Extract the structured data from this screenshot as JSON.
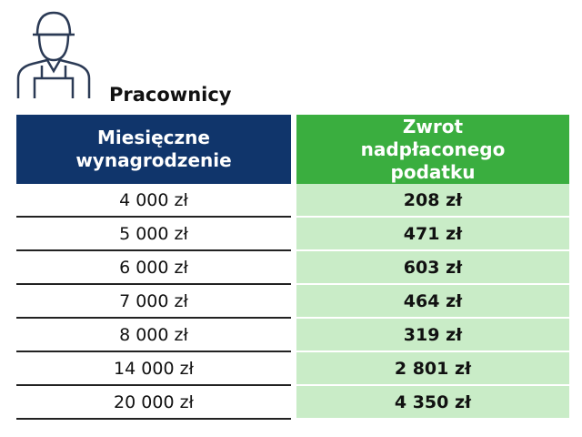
{
  "header": {
    "title": "Pracownicy"
  },
  "table": {
    "columns": [
      "Miesięczne wynagrodzenie",
      "Zwrot nadpłaconego podatku"
    ],
    "rows": [
      [
        "4 000 zł",
        "208 zł"
      ],
      [
        "5 000 zł",
        "471 zł"
      ],
      [
        "6 000 zł",
        "603 zł"
      ],
      [
        "7 000 zł",
        "464 zł"
      ],
      [
        "8 000 zł",
        "319 zł"
      ],
      [
        "14 000 zł",
        "2 801 zł"
      ],
      [
        "20 000 zł",
        "4 350 zł"
      ]
    ]
  }
}
